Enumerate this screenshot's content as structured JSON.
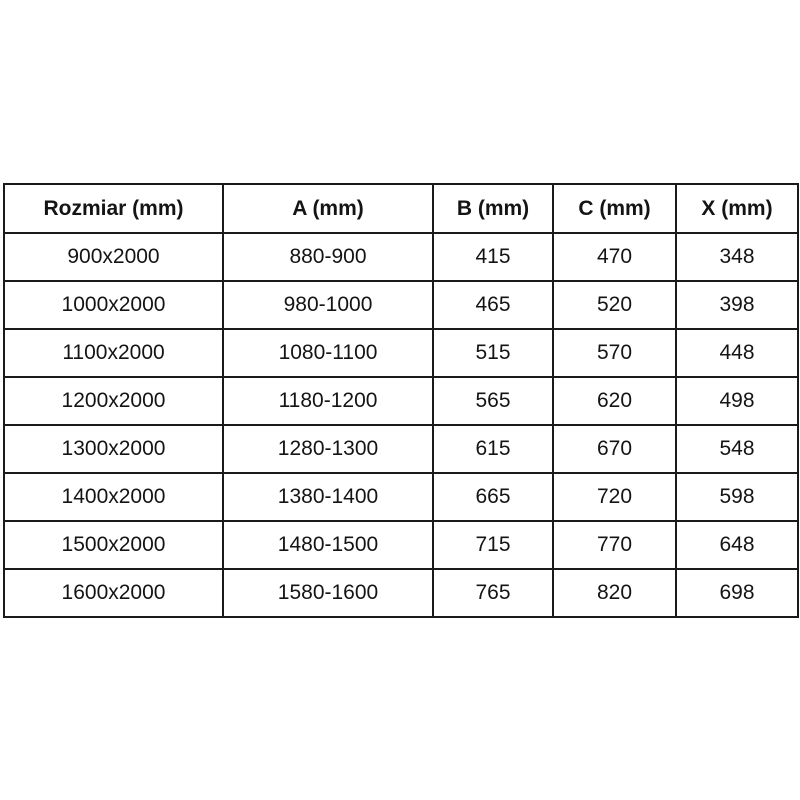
{
  "table": {
    "columns": [
      "Rozmiar (mm)",
      "A (mm)",
      "B (mm)",
      "C (mm)",
      "X (mm)"
    ],
    "rows": [
      [
        "900x2000",
        "880-900",
        "415",
        "470",
        "348"
      ],
      [
        "1000x2000",
        "980-1000",
        "465",
        "520",
        "398"
      ],
      [
        "1100x2000",
        "1080-1100",
        "515",
        "570",
        "448"
      ],
      [
        "1200x2000",
        "1180-1200",
        "565",
        "620",
        "498"
      ],
      [
        "1300x2000",
        "1280-1300",
        "615",
        "670",
        "548"
      ],
      [
        "1400x2000",
        "1380-1400",
        "665",
        "720",
        "598"
      ],
      [
        "1500x2000",
        "1480-1500",
        "715",
        "770",
        "648"
      ],
      [
        "1600x2000",
        "1580-1600",
        "765",
        "820",
        "698"
      ]
    ]
  },
  "colors": {
    "border": "#1a1a1a",
    "text": "#141414",
    "background": "#ffffff"
  }
}
